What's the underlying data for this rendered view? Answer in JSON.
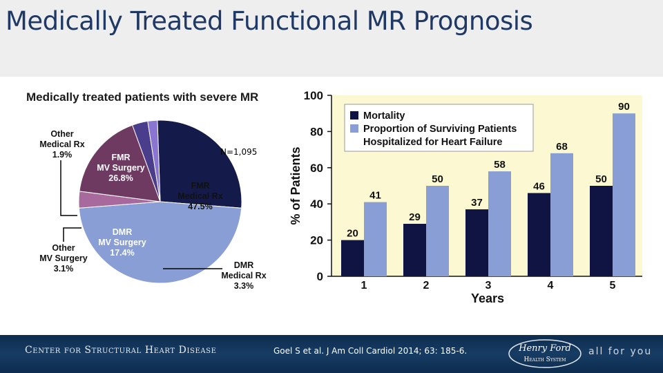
{
  "title": "Medically Treated Functional MR Prognosis",
  "pie_chart": {
    "title": "Medically treated patients with severe MR",
    "n_label": "N=1,095",
    "colors": {
      "fmr_mv_surgery": "#141a4a",
      "fmr_medical": "#8a9ed6",
      "dmr_medical": "#a86a9c",
      "dmr_mv_surgery": "#6e3a62",
      "other_mv_surgery": "#4a3d8c",
      "other_medical": "#8a76d0"
    }
  },
  "bar_chart": {
    "ylabel": "% of Patients",
    "xlabel": "Years",
    "colors": {
      "mortality": "#0f1442",
      "hospitalized": "#8a9ed6",
      "plot_bg": "#fbf8d2"
    },
    "legend_note": "Hospitalized for Heart Failure"
  },
  "footer": {
    "left_text": "Center for Structural Heart Disease",
    "citation": "Goel S et al. J Am Coll Cardiol 2014; 63: 185-6.",
    "logo_text_line1": "Henry Ford",
    "logo_text_line2": "Health System",
    "tagline": "all for you"
  },
  "chart_data": [
    {
      "type": "pie",
      "title": "Medically treated patients with severe MR",
      "slices": [
        {
          "label_lines": [
            "FMR",
            "MV Surgery",
            "26.8%"
          ],
          "value": 26.8,
          "key": "fmr_mv_surgery"
        },
        {
          "label_lines": [
            "FMR",
            "Medical Rx",
            "47.5%"
          ],
          "value": 47.5,
          "key": "fmr_medical"
        },
        {
          "label_lines": [
            "DMR",
            "Medical Rx",
            "3.3%"
          ],
          "value": 3.3,
          "key": "dmr_medical"
        },
        {
          "label_lines": [
            "DMR",
            "MV Surgery",
            "17.4%"
          ],
          "value": 17.4,
          "key": "dmr_mv_surgery"
        },
        {
          "label_lines": [
            "Other",
            "MV Surgery",
            "3.1%"
          ],
          "value": 3.1,
          "key": "other_mv_surgery"
        },
        {
          "label_lines": [
            "Other",
            "Medical Rx",
            "1.9%"
          ],
          "value": 1.9,
          "key": "other_medical"
        }
      ]
    },
    {
      "type": "bar",
      "categories": [
        "1",
        "2",
        "3",
        "4",
        "5"
      ],
      "series": [
        {
          "name": "Mortality",
          "values": [
            20,
            29,
            37,
            46,
            50
          ]
        },
        {
          "name": "Proportion of Surviving Patients",
          "values": [
            41,
            50,
            58,
            68,
            90
          ]
        }
      ],
      "xlabel": "Years",
      "ylabel": "% of Patients",
      "ylim": [
        0,
        100
      ],
      "yticks": [
        0,
        20,
        40,
        60,
        80,
        100
      ],
      "legend_position": "top-left",
      "grid": false
    }
  ]
}
